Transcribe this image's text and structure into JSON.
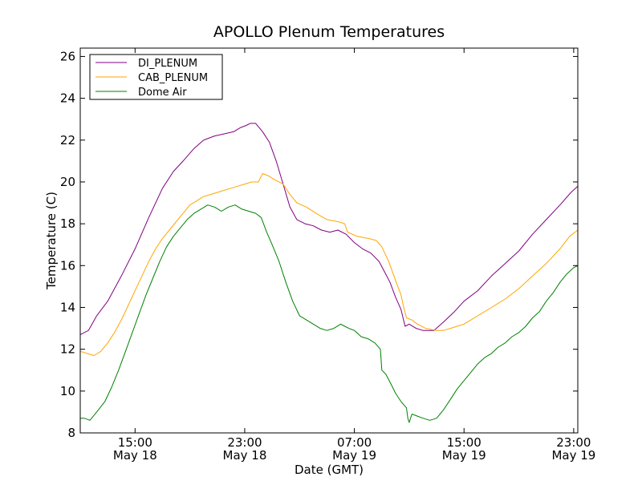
{
  "chart_data": {
    "type": "line",
    "title": "APOLLO Plenum Temperatures",
    "xlabel": "Date (GMT)",
    "ylabel": "Temperature (C)",
    "x_unit": "hours since May 18 11:00 GMT",
    "xlim": [
      0,
      36.3
    ],
    "ylim": [
      8,
      26.4
    ],
    "yticks": [
      8,
      10,
      12,
      14,
      16,
      18,
      20,
      22,
      24,
      26
    ],
    "xticks": [
      {
        "x": 4,
        "line1": "15:00",
        "line2": "May 18"
      },
      {
        "x": 12,
        "line1": "23:00",
        "line2": "May 18"
      },
      {
        "x": 20,
        "line1": "07:00",
        "line2": "May 19"
      },
      {
        "x": 28,
        "line1": "15:00",
        "line2": "May 19"
      },
      {
        "x": 36,
        "line1": "23:00",
        "line2": "May 19"
      }
    ],
    "grid": false,
    "legend_position": "top-left",
    "series": [
      {
        "name": "DI_PLENUM",
        "color": "#800080",
        "points": [
          [
            0,
            12.7
          ],
          [
            0.6,
            12.9
          ],
          [
            1.2,
            13.6
          ],
          [
            2,
            14.3
          ],
          [
            3,
            15.5
          ],
          [
            4,
            16.8
          ],
          [
            5,
            18.3
          ],
          [
            6,
            19.7
          ],
          [
            6.8,
            20.5
          ],
          [
            7.5,
            21.0
          ],
          [
            8.3,
            21.6
          ],
          [
            9,
            22.0
          ],
          [
            9.8,
            22.2
          ],
          [
            10.5,
            22.3
          ],
          [
            11.2,
            22.4
          ],
          [
            11.7,
            22.6
          ],
          [
            12.1,
            22.7
          ],
          [
            12.4,
            22.8
          ],
          [
            12.8,
            22.8
          ],
          [
            13.3,
            22.4
          ],
          [
            13.8,
            21.9
          ],
          [
            14.3,
            21.0
          ],
          [
            14.8,
            19.9
          ],
          [
            15.3,
            18.8
          ],
          [
            15.8,
            18.2
          ],
          [
            16.4,
            18.0
          ],
          [
            17,
            17.9
          ],
          [
            17.6,
            17.7
          ],
          [
            18.2,
            17.6
          ],
          [
            18.8,
            17.7
          ],
          [
            19.4,
            17.5
          ],
          [
            20,
            17.1
          ],
          [
            20.6,
            16.8
          ],
          [
            21.2,
            16.6
          ],
          [
            21.8,
            16.2
          ],
          [
            22.2,
            15.7
          ],
          [
            22.6,
            15.2
          ],
          [
            23,
            14.5
          ],
          [
            23.4,
            13.9
          ],
          [
            23.7,
            13.1
          ],
          [
            24,
            13.2
          ],
          [
            24.5,
            13.0
          ],
          [
            25,
            12.9
          ],
          [
            25.8,
            12.9
          ],
          [
            26.5,
            13.3
          ],
          [
            27.3,
            13.8
          ],
          [
            28,
            14.3
          ],
          [
            29,
            14.8
          ],
          [
            30,
            15.5
          ],
          [
            31,
            16.1
          ],
          [
            32,
            16.7
          ],
          [
            33,
            17.5
          ],
          [
            34,
            18.2
          ],
          [
            35,
            18.9
          ],
          [
            35.8,
            19.5
          ],
          [
            36.3,
            19.8
          ]
        ]
      },
      {
        "name": "CAB_PLENUM",
        "color": "#FFA500",
        "points": [
          [
            0,
            11.9
          ],
          [
            0.5,
            11.8
          ],
          [
            1,
            11.7
          ],
          [
            1.5,
            11.9
          ],
          [
            2,
            12.3
          ],
          [
            2.5,
            12.8
          ],
          [
            3,
            13.4
          ],
          [
            3.5,
            14.1
          ],
          [
            4,
            14.8
          ],
          [
            4.5,
            15.5
          ],
          [
            5,
            16.2
          ],
          [
            5.5,
            16.8
          ],
          [
            6,
            17.3
          ],
          [
            6.5,
            17.7
          ],
          [
            7,
            18.1
          ],
          [
            7.5,
            18.5
          ],
          [
            8,
            18.9
          ],
          [
            8.5,
            19.1
          ],
          [
            9,
            19.3
          ],
          [
            9.5,
            19.4
          ],
          [
            10,
            19.5
          ],
          [
            10.5,
            19.6
          ],
          [
            11,
            19.7
          ],
          [
            11.5,
            19.8
          ],
          [
            12,
            19.9
          ],
          [
            12.5,
            20.0
          ],
          [
            13,
            20.0
          ],
          [
            13.3,
            20.4
          ],
          [
            13.7,
            20.3
          ],
          [
            14.2,
            20.1
          ],
          [
            14.8,
            19.9
          ],
          [
            15.3,
            19.4
          ],
          [
            15.8,
            19.0
          ],
          [
            16.5,
            18.8
          ],
          [
            17.2,
            18.5
          ],
          [
            18,
            18.2
          ],
          [
            18.8,
            18.1
          ],
          [
            19.3,
            18.0
          ],
          [
            19.5,
            17.6
          ],
          [
            20.2,
            17.4
          ],
          [
            21,
            17.3
          ],
          [
            21.6,
            17.2
          ],
          [
            22,
            16.9
          ],
          [
            22.5,
            16.2
          ],
          [
            23,
            15.3
          ],
          [
            23.4,
            14.6
          ],
          [
            23.6,
            14.0
          ],
          [
            23.8,
            13.5
          ],
          [
            24.2,
            13.4
          ],
          [
            24.6,
            13.2
          ],
          [
            25.2,
            13.0
          ],
          [
            26,
            12.9
          ],
          [
            26.5,
            12.9
          ],
          [
            27,
            13.0
          ],
          [
            27.5,
            13.1
          ],
          [
            28,
            13.2
          ],
          [
            29,
            13.6
          ],
          [
            30,
            14.0
          ],
          [
            31,
            14.4
          ],
          [
            32,
            14.9
          ],
          [
            33,
            15.5
          ],
          [
            34,
            16.1
          ],
          [
            35,
            16.8
          ],
          [
            35.7,
            17.4
          ],
          [
            36.3,
            17.7
          ]
        ]
      },
      {
        "name": "Dome Air",
        "color": "#008000",
        "points": [
          [
            0,
            8.7
          ],
          [
            0.3,
            8.7
          ],
          [
            0.7,
            8.6
          ],
          [
            1.2,
            9.0
          ],
          [
            1.8,
            9.5
          ],
          [
            2.3,
            10.2
          ],
          [
            2.8,
            11.0
          ],
          [
            3.3,
            11.9
          ],
          [
            3.8,
            12.8
          ],
          [
            4.3,
            13.7
          ],
          [
            4.8,
            14.6
          ],
          [
            5.3,
            15.4
          ],
          [
            5.8,
            16.2
          ],
          [
            6.3,
            16.9
          ],
          [
            6.8,
            17.4
          ],
          [
            7.3,
            17.8
          ],
          [
            7.8,
            18.2
          ],
          [
            8.3,
            18.5
          ],
          [
            8.8,
            18.7
          ],
          [
            9.3,
            18.9
          ],
          [
            9.8,
            18.8
          ],
          [
            10.3,
            18.6
          ],
          [
            10.8,
            18.8
          ],
          [
            11.3,
            18.9
          ],
          [
            11.8,
            18.7
          ],
          [
            12.3,
            18.6
          ],
          [
            12.8,
            18.5
          ],
          [
            13.2,
            18.3
          ],
          [
            13.6,
            17.6
          ],
          [
            14,
            17.0
          ],
          [
            14.5,
            16.2
          ],
          [
            15,
            15.2
          ],
          [
            15.5,
            14.3
          ],
          [
            16,
            13.6
          ],
          [
            16.5,
            13.4
          ],
          [
            17,
            13.2
          ],
          [
            17.5,
            13.0
          ],
          [
            18,
            12.9
          ],
          [
            18.5,
            13.0
          ],
          [
            19,
            13.2
          ],
          [
            19.3,
            13.1
          ],
          [
            19.6,
            13.0
          ],
          [
            20,
            12.9
          ],
          [
            20.5,
            12.6
          ],
          [
            21,
            12.5
          ],
          [
            21.5,
            12.3
          ],
          [
            21.9,
            12.0
          ],
          [
            22,
            11.0
          ],
          [
            22.3,
            10.8
          ],
          [
            22.7,
            10.3
          ],
          [
            23,
            9.9
          ],
          [
            23.4,
            9.5
          ],
          [
            23.8,
            9.2
          ],
          [
            23.9,
            8.7
          ],
          [
            24,
            8.5
          ],
          [
            24.2,
            8.9
          ],
          [
            24.6,
            8.8
          ],
          [
            25,
            8.7
          ],
          [
            25.5,
            8.6
          ],
          [
            26,
            8.7
          ],
          [
            26.5,
            9.1
          ],
          [
            27,
            9.6
          ],
          [
            27.5,
            10.1
          ],
          [
            28,
            10.5
          ],
          [
            28.5,
            10.9
          ],
          [
            29,
            11.3
          ],
          [
            29.5,
            11.6
          ],
          [
            30,
            11.8
          ],
          [
            30.5,
            12.1
          ],
          [
            31,
            12.3
          ],
          [
            31.5,
            12.6
          ],
          [
            32,
            12.8
          ],
          [
            32.5,
            13.1
          ],
          [
            33,
            13.5
          ],
          [
            33.5,
            13.8
          ],
          [
            34,
            14.3
          ],
          [
            34.5,
            14.7
          ],
          [
            35,
            15.2
          ],
          [
            35.5,
            15.6
          ],
          [
            36,
            15.9
          ],
          [
            36.3,
            16.0
          ]
        ]
      }
    ]
  }
}
